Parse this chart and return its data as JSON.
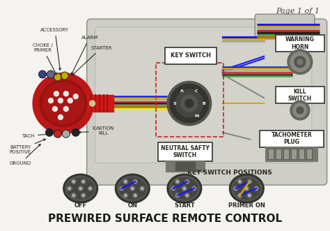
{
  "title": "PREWIRED SURFACE REMOTE CONTROL",
  "page_text": "Page 1 of 1",
  "bg_color": "#f5f3ef",
  "title_fontsize": 11,
  "page_fontsize": 8,
  "connector_labels": [
    "ACCESSORY",
    "ALARM",
    "CHOKE /\nPRIMER",
    "STARTER",
    "TACH",
    "IGNITION\nKILL",
    "BATTERY\nPOSITIVE",
    "GROUND"
  ],
  "right_labels": [
    "WARNING\nHORN",
    "KILL\nSWITCH",
    "TACHOMETER\nPLUG"
  ],
  "center_labels": [
    "KEY SWITCH",
    "NEUTRAL SAFTY\nSWITCH",
    "KEY SWITCH POSITIONS"
  ],
  "switch_positions": [
    "OFF",
    "ON",
    "START",
    "PRIMER ON"
  ],
  "connector_color": "#c82020",
  "body_fill": "#c8c8c0",
  "body_edge": "#888880",
  "dark_color": "#282820",
  "wire_bundle": [
    "#1a1aee",
    "#d4aa00",
    "#c0c0c0",
    "#cc2222",
    "#222222",
    "#888820",
    "#cc6600"
  ],
  "label_arrow_color": "#282820"
}
